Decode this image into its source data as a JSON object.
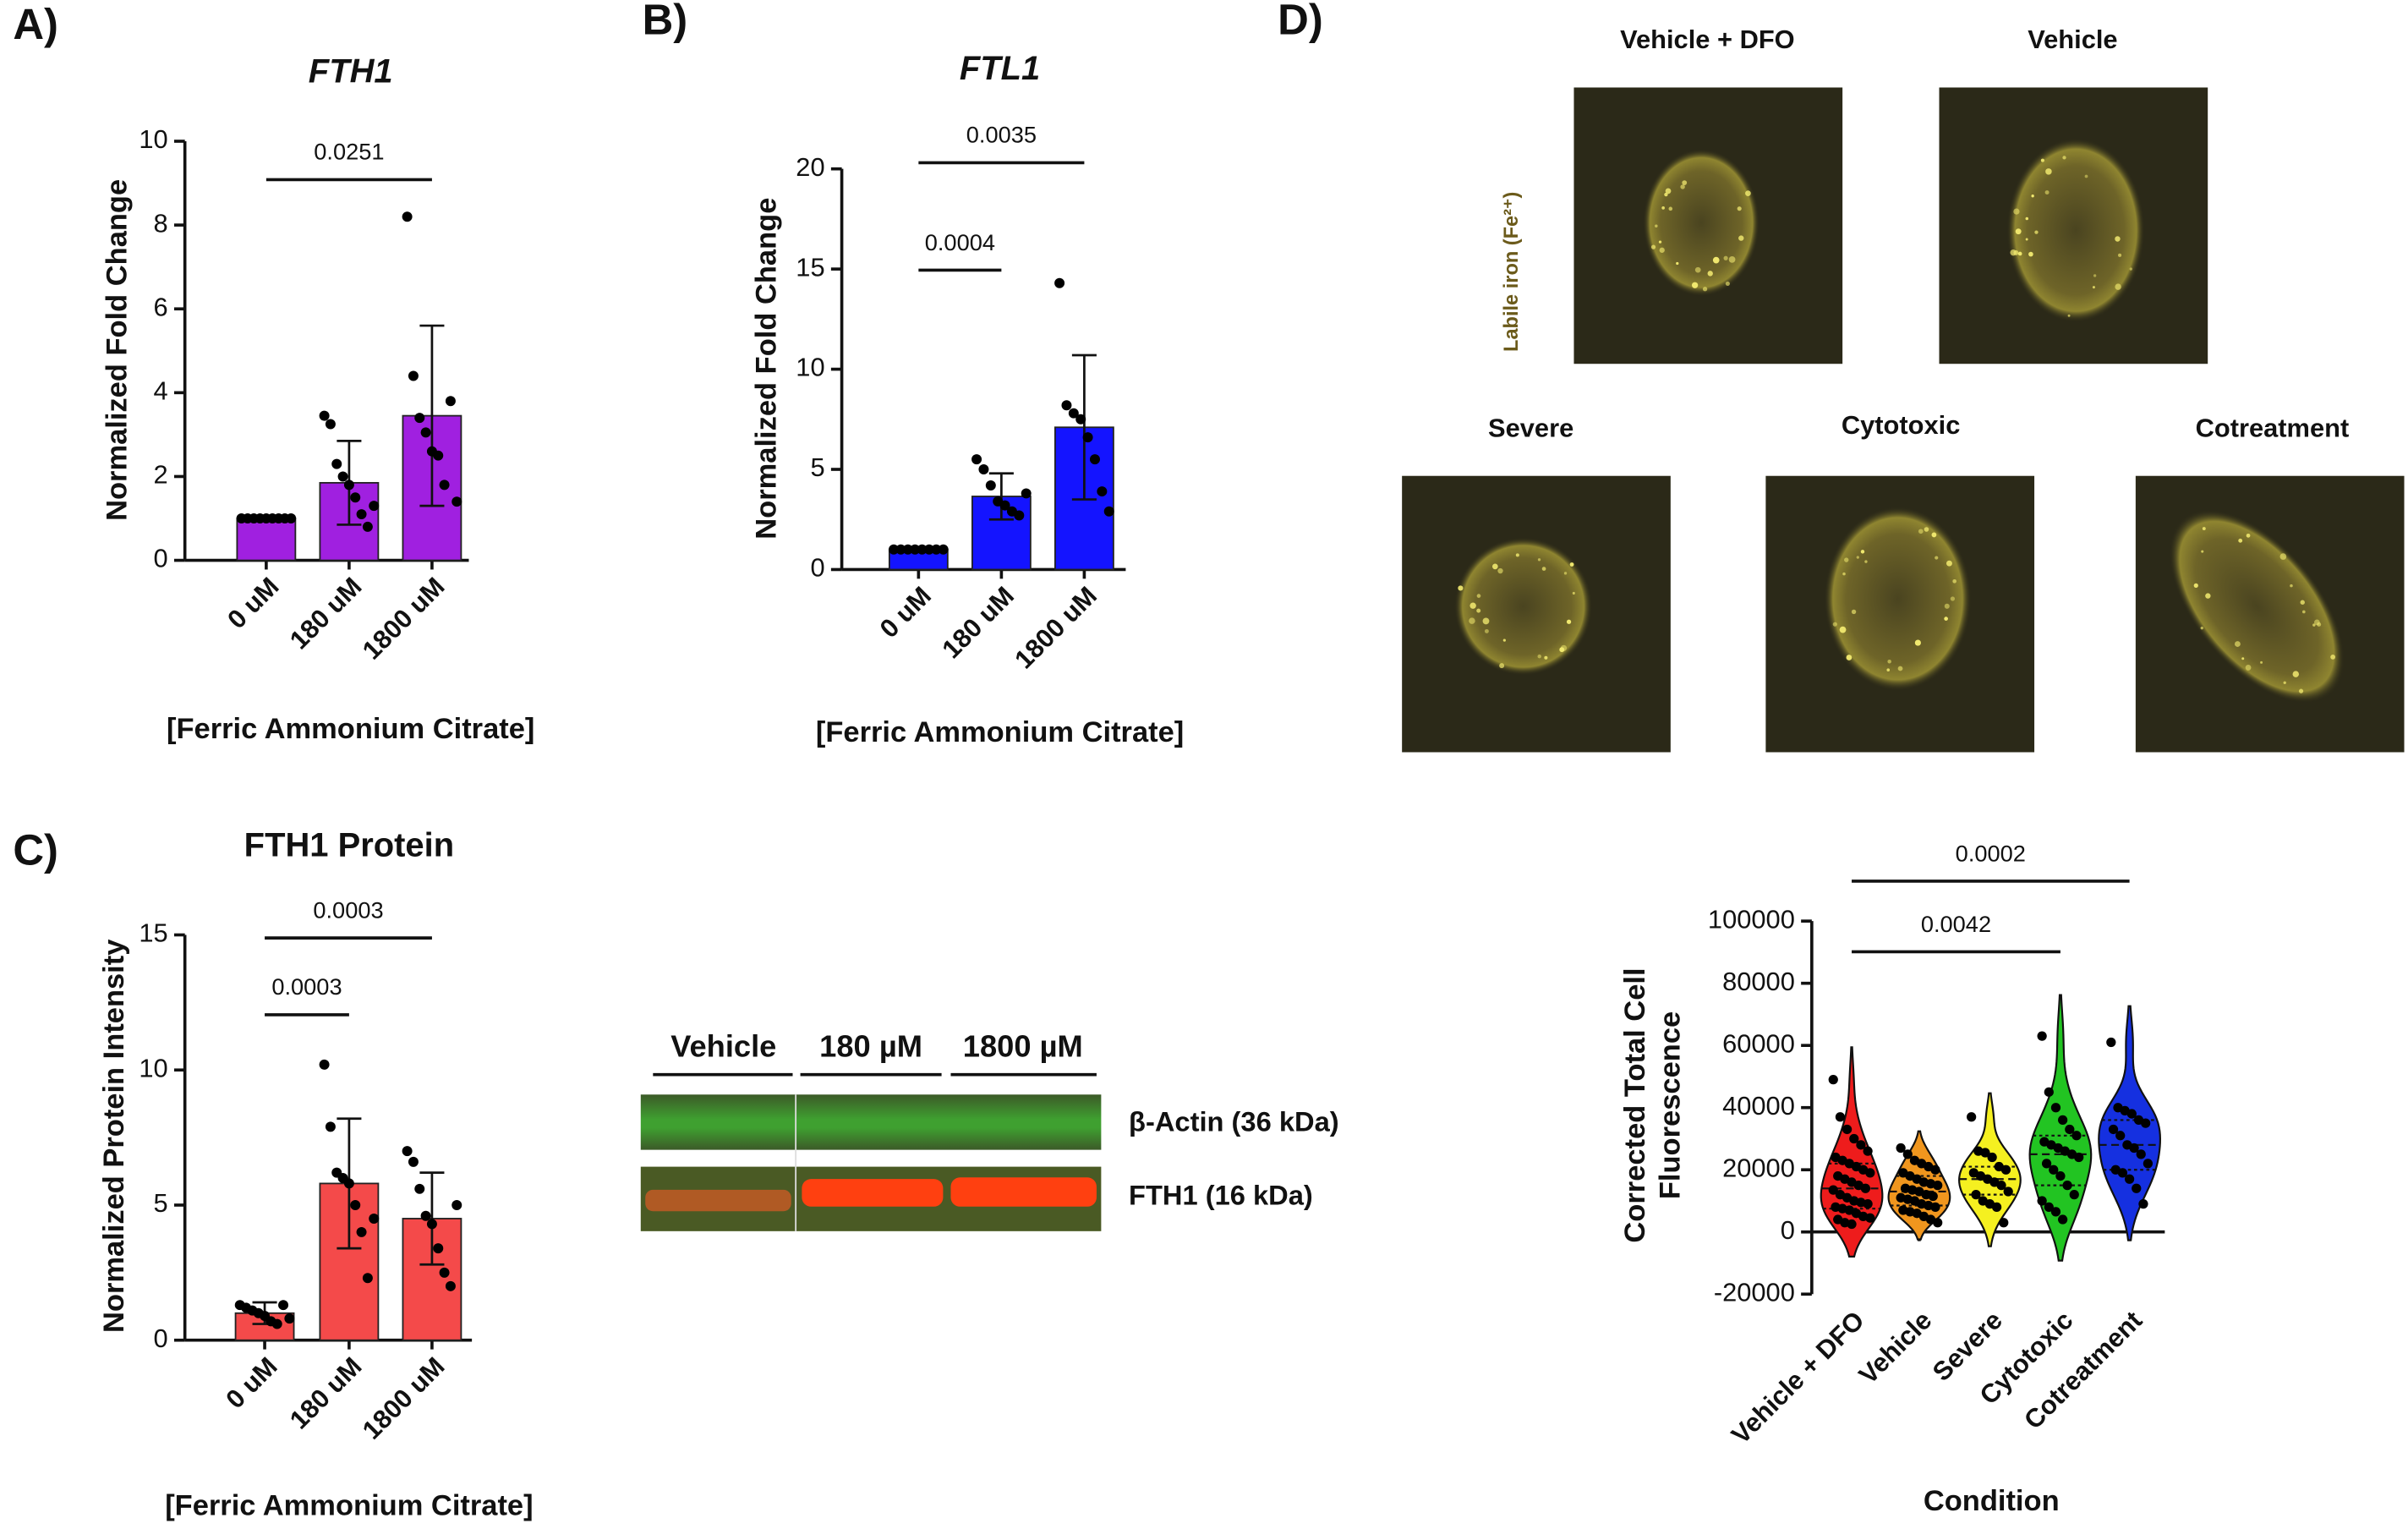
{
  "panel_labels": [
    "A)",
    "B)",
    "C)",
    "D)"
  ],
  "chart_data": [
    {
      "type": "bar",
      "title": "FTH1",
      "title_italic": true,
      "ylabel": "Normalized Fold Change",
      "xlabel": "[Ferric Ammonium Citrate]",
      "categories": [
        "0 uM",
        "180 uM",
        "1800 uM"
      ],
      "values": [
        1,
        1.85,
        3.45
      ],
      "errors": [
        0,
        1.0,
        2.15
      ],
      "points": [
        [
          1,
          1,
          1,
          1,
          1,
          1,
          1,
          1,
          1
        ],
        [
          3.45,
          3.25,
          2.3,
          2.0,
          1.8,
          1.5,
          1.1,
          0.8,
          1.3
        ],
        [
          8.2,
          4.4,
          3.4,
          3.05,
          2.6,
          2.5,
          1.8,
          3.8,
          1.4
        ]
      ],
      "color": "#a020e0",
      "ylim": [
        0,
        10
      ],
      "yticks": [
        0,
        2,
        4,
        6,
        8,
        10
      ],
      "significance": [
        {
          "from": 0,
          "to": 2,
          "label": "0.0251"
        }
      ]
    },
    {
      "type": "bar",
      "title": "FTL1",
      "title_italic": true,
      "ylabel": "Normalized Fold Change",
      "xlabel": "[Ferric Ammonium Citrate]",
      "categories": [
        "0 uM",
        "180 uM",
        "1800 uM"
      ],
      "values": [
        1,
        3.65,
        7.1
      ],
      "errors": [
        0,
        1.15,
        3.6
      ],
      "points": [
        [
          1,
          1,
          1,
          1,
          1,
          1,
          1,
          1
        ],
        [
          5.5,
          5.0,
          4.2,
          3.4,
          3.2,
          2.9,
          2.7,
          3.8
        ],
        [
          14.3,
          8.2,
          7.8,
          7.5,
          6.6,
          5.5,
          3.9,
          2.9
        ]
      ],
      "color": "#1414ff",
      "ylim": [
        0,
        20
      ],
      "yticks": [
        0,
        5,
        10,
        15,
        20
      ],
      "significance": [
        {
          "from": 0,
          "to": 1,
          "label": "0.0004"
        },
        {
          "from": 0,
          "to": 2,
          "label": "0.0035"
        }
      ]
    },
    {
      "type": "bar",
      "title": "FTH1 Protein",
      "title_italic": false,
      "ylabel": "Normalized Protein Intensity",
      "xlabel": "[Ferric Ammonium Citrate]",
      "categories": [
        "0 uM",
        "180 uM",
        "1800 uM"
      ],
      "values": [
        1.0,
        5.8,
        4.5
      ],
      "errors": [
        0.4,
        2.4,
        1.7
      ],
      "points": [
        [
          1.3,
          1.2,
          1.1,
          1.0,
          0.9,
          0.7,
          0.6,
          1.3,
          0.8
        ],
        [
          10.2,
          7.9,
          6.2,
          6.0,
          5.8,
          5.0,
          4.0,
          2.3,
          4.5
        ],
        [
          7.0,
          6.6,
          5.6,
          4.6,
          4.3,
          3.4,
          2.5,
          2.0,
          5.0
        ]
      ],
      "color": "#f44a4a",
      "ylim": [
        0,
        15
      ],
      "yticks": [
        0,
        5,
        10,
        15
      ],
      "significance": [
        {
          "from": 0,
          "to": 1,
          "label": "0.0003"
        },
        {
          "from": 0,
          "to": 2,
          "label": "0.0003"
        }
      ]
    },
    {
      "type": "violin",
      "ylabel": "Corrected Total Cell Fluorescence",
      "xlabel": "Condition",
      "categories": [
        "Vehicle + DFO",
        "Vehicle",
        "Severe",
        "Cytotoxic",
        "Cotreatment"
      ],
      "colors": [
        "#ee1c1c",
        "#f0961e",
        "#f5f020",
        "#22c422",
        "#1530e0"
      ],
      "values": [
        [
          49000,
          37000,
          33000,
          30000,
          28000,
          26000,
          24000,
          23000,
          22000,
          21000,
          20000,
          19000,
          18000,
          17000,
          16000,
          15000,
          14000,
          13500,
          12000,
          11000,
          10000,
          9500,
          9000,
          8000,
          7500,
          7000,
          6000,
          5000,
          4500,
          4000,
          3000,
          2500
        ],
        [
          27000,
          25000,
          23000,
          22000,
          21000,
          20000,
          19000,
          18000,
          17000,
          16000,
          15500,
          15000,
          14000,
          13500,
          13000,
          12000,
          11500,
          11000,
          10500,
          10000,
          9000,
          8500,
          8000,
          7000,
          6500,
          6000,
          5000,
          4000,
          3000
        ],
        [
          37000,
          26000,
          25500,
          24000,
          21000,
          20000,
          19000,
          18000,
          17000,
          16000,
          15000,
          13000,
          12000,
          10000,
          9000,
          8000,
          3000
        ],
        [
          63000,
          45000,
          40000,
          36000,
          33000,
          31000,
          29000,
          28000,
          27000,
          26000,
          25000,
          24000,
          22000,
          20000,
          18000,
          15000,
          12000,
          10000,
          8000,
          6500,
          4000
        ],
        [
          61000,
          40000,
          39000,
          38000,
          36000,
          35000,
          33000,
          31000,
          28000,
          27000,
          25000,
          22000,
          20000,
          19000,
          17000,
          14000,
          9000
        ]
      ],
      "ylim": [
        -20000,
        100000
      ],
      "yticks": [
        -20000,
        0,
        20000,
        40000,
        60000,
        80000,
        100000
      ],
      "significance": [
        {
          "from": 0,
          "to": 3,
          "label": "0.0042"
        },
        {
          "from": 0,
          "to": 4,
          "label": "0.0002"
        }
      ]
    }
  ],
  "microscopy": {
    "channel_label": "Labile iron (Fe²⁺)",
    "images": [
      "Vehicle + DFO",
      "Vehicle",
      "Severe",
      "Cytotoxic",
      "Cotreatment"
    ]
  },
  "western_blot": {
    "lanes": [
      "Vehicle",
      "180 µM",
      "1800 µM"
    ],
    "bands": [
      "β-Actin (36 kDa)",
      "FTH1 (16 kDa)"
    ]
  }
}
